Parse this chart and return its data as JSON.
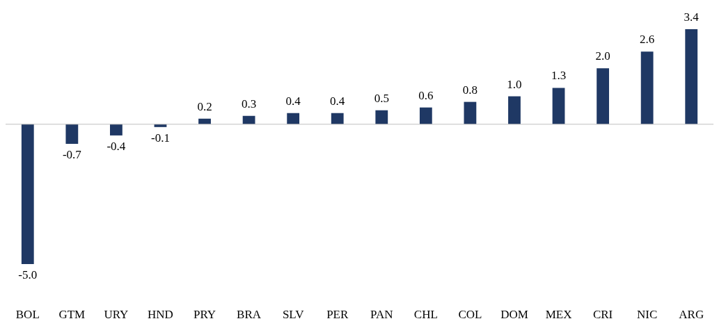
{
  "chart_data": {
    "type": "bar",
    "categories": [
      "BOL",
      "GTM",
      "URY",
      "HND",
      "PRY",
      "BRA",
      "SLV",
      "PER",
      "PAN",
      "CHL",
      "COL",
      "DOM",
      "MEX",
      "CRI",
      "NIC",
      "ARG"
    ],
    "values": [
      -5.0,
      -0.7,
      -0.4,
      -0.1,
      0.2,
      0.3,
      0.4,
      0.4,
      0.5,
      0.6,
      0.8,
      1.0,
      1.3,
      2.0,
      2.6,
      3.4
    ],
    "value_labels": [
      "-5.0",
      "-0.7",
      "-0.4",
      "-0.1",
      "0.2",
      "0.3",
      "0.4",
      "0.4",
      "0.5",
      "0.6",
      "0.8",
      "1.0",
      "1.3",
      "2.0",
      "2.6",
      "3.4"
    ],
    "color": "#1f3864",
    "grid": false,
    "legend": false
  }
}
